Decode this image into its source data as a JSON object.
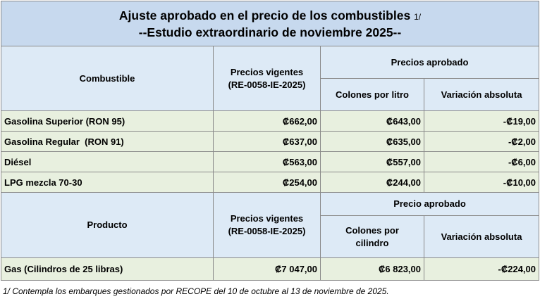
{
  "title": {
    "line1": "Ajuste aprobado en el precio de los combustibles",
    "line1_suffix": "1/",
    "line2": "--Estudio extraordinario de noviembre 2025--"
  },
  "fuel_header": {
    "combustible": "Combustible",
    "vigentes": "Precios vigentes",
    "vigentes_ref": "(RE-0058-IE-2025)",
    "aprobado": "Precios aprobado",
    "colones": "Colones por litro",
    "variacion": "Variación absoluta"
  },
  "fuel_rows": [
    {
      "name": "Gasolina Superior (RON 95)",
      "vigente": "₡662,00",
      "aprobado": "₡643,00",
      "variacion": "-₡19,00"
    },
    {
      "name": "Gasolina Regular  (RON 91)",
      "vigente": "₡637,00",
      "aprobado": "₡635,00",
      "variacion": "-₡2,00"
    },
    {
      "name": "Diésel",
      "vigente": "₡563,00",
      "aprobado": "₡557,00",
      "variacion": "-₡6,00"
    },
    {
      "name": "LPG mezcla 70-30",
      "vigente": "₡254,00",
      "aprobado": "₡244,00",
      "variacion": "-₡10,00"
    }
  ],
  "product_header": {
    "producto": "Producto",
    "vigentes": "Precios vigentes",
    "vigentes_ref": "(RE-0058-IE-2025)",
    "aprobado": "Precio aprobado",
    "colones_line1": "Colones por",
    "colones_line2": "cilindro",
    "variacion": "Variación absoluta"
  },
  "product_rows": [
    {
      "name": "Gas (Cilindros de 25 libras)",
      "vigente": "₡7 047,00",
      "aprobado": "₡6 823,00",
      "variacion": "-₡224,00"
    }
  ],
  "footnote": "1/ Contempla los embarques gestionados por RECOPE del 10 de octubre al 13 de noviembre de 2025.",
  "colors": {
    "title_bg": "#c7d9ee",
    "header_bg": "#ddeaf6",
    "row_bg": "#e8f0df",
    "border": "#8a8a8a"
  }
}
